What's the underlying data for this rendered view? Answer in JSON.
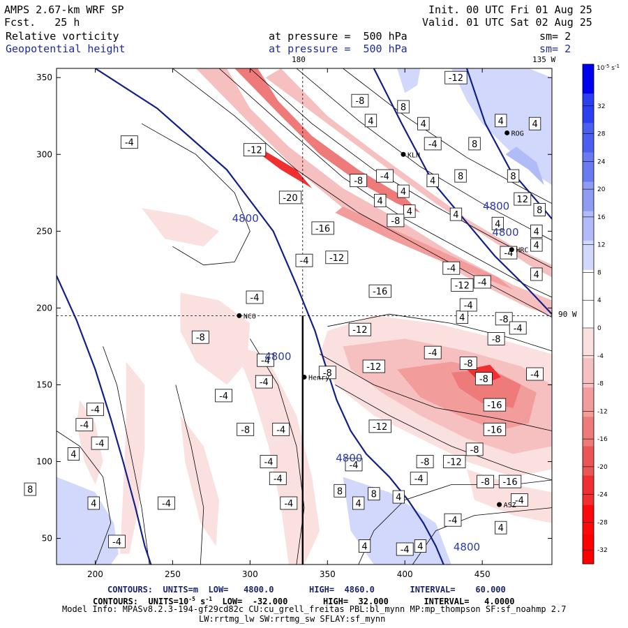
{
  "header": {
    "model": "AMPS 2.67-km WRF SP",
    "fcst": "Fcst.   25 h",
    "init": "Init. 00 UTC Fri 01 Aug 25",
    "valid": "Valid. 01 UTC Sat 02 Aug 25",
    "field1_name": "Relative vorticity",
    "field1_level": "at pressure =  500 hPa",
    "field1_sm": "sm= 2",
    "field2_name": "Geopotential height",
    "field2_level": "at pressure =  500 hPa",
    "field2_sm": "sm= 2",
    "lon_top": "180",
    "lon_right_top": "135 W",
    "lon_right_mid": "90 W"
  },
  "footer": {
    "contours_height": "CONTOURS:  UNITS=m  LOW=   4800.0       HIGH=  4860.0       INTERVAL=    60.000",
    "contours_vort_pre": "CONTOURS:  UNITS=10",
    "contours_vort_exp": "-5",
    "contours_vort_post": " s",
    "contours_vort_exp2": "-1",
    "contours_vort_rest": "  LOW=  -32.000       HIGH=  32.000       INTERVAL=   4.0000",
    "model_info": "Model Info: MPASv8.2.3-194-gf29cd82c CU:cu_grell_freitas PBL:bl_mynn MP:mp_thompson SF:sf_noahmp 2.7",
    "model_info2": "LW:rrtmg_lw SW:rrtmg_sw SFLAY:sf_mynn"
  },
  "colorbar": {
    "title": "10",
    "title_exp": "-5",
    "title_unit": " s",
    "title_unit_exp": "-1",
    "labels": [
      "32",
      "28",
      "24",
      "20",
      "16",
      "12",
      "8",
      "4",
      "0",
      "-4",
      "-8",
      "-12",
      "-16",
      "-20",
      "-24",
      "-28",
      "-32"
    ],
    "positive_colors": [
      "#0000ee",
      "#2b3ff0",
      "#4a5ef0",
      "#6a7bf2",
      "#8f9cf4",
      "#b1bbf7",
      "#d2d8fb",
      "#ffffff"
    ],
    "negative_colors": [
      "#ffffff",
      "#fbe0e0",
      "#f7c0c0",
      "#f29c9c",
      "#ee7a7a",
      "#ea5656",
      "#f03030",
      "#fa0a0a",
      "#ff0000"
    ]
  },
  "stations": [
    {
      "code": "NCO",
      "x": 293,
      "y": 195
    },
    {
      "code": "Henry",
      "x": 335,
      "y": 155
    },
    {
      "code": "KLN",
      "x": 399,
      "y": 300
    },
    {
      "code": "ROG",
      "x": 466,
      "y": 314
    },
    {
      "code": "HRC",
      "x": 469,
      "y": 238
    },
    {
      "code": "ASZ",
      "x": 461,
      "y": 72
    }
  ],
  "chart_data": {
    "type": "heatmap",
    "title": "Relative vorticity / Geopotential height at 500 hPa",
    "xlim": [
      175,
      495
    ],
    "ylim": [
      33,
      356
    ],
    "x_ticks": [
      200,
      250,
      300,
      350,
      400,
      450
    ],
    "y_ticks": [
      50,
      100,
      150,
      200,
      250,
      300,
      350
    ],
    "crosshair": {
      "x": 334,
      "y": 195
    },
    "height_contours": [
      {
        "label": "4800",
        "points": [
          [
            175,
            221
          ],
          [
            188,
            192
          ],
          [
            200,
            160
          ],
          [
            210,
            128
          ],
          [
            218,
            100
          ],
          [
            226,
            70
          ],
          [
            232,
            45
          ],
          [
            236,
            33
          ]
        ]
      },
      {
        "label": "4800",
        "points": [
          [
            200,
            356
          ],
          [
            240,
            330
          ],
          [
            285,
            290
          ],
          [
            315,
            250
          ],
          [
            330,
            215
          ],
          [
            342,
            185
          ],
          [
            348,
            165
          ],
          [
            356,
            140
          ],
          [
            365,
            120
          ],
          [
            375,
            105
          ],
          [
            390,
            90
          ],
          [
            402,
            75
          ],
          [
            412,
            60
          ],
          [
            420,
            45
          ],
          [
            425,
            33
          ]
        ]
      },
      {
        "label": "4800",
        "points": [
          [
            380,
            356
          ],
          [
            398,
            320
          ],
          [
            418,
            282
          ],
          [
            438,
            258
          ],
          [
            458,
            234
          ],
          [
            480,
            212
          ],
          [
            495,
            196
          ]
        ]
      },
      {
        "label": "4800",
        "points": [
          [
            440,
            356
          ],
          [
            452,
            320
          ],
          [
            468,
            290
          ],
          [
            485,
            270
          ],
          [
            495,
            258
          ]
        ]
      }
    ],
    "vorticity_labels": [
      {
        "v": "-8",
        "x": 371,
        "y": 335
      },
      {
        "v": "4",
        "x": 378,
        "y": 322
      },
      {
        "v": "8",
        "x": 399,
        "y": 331
      },
      {
        "v": "4",
        "x": 412,
        "y": 320
      },
      {
        "v": "-12",
        "x": 433,
        "y": 350
      },
      {
        "v": "-4",
        "x": 418,
        "y": 307
      },
      {
        "v": "8",
        "x": 445,
        "y": 307
      },
      {
        "v": "4",
        "x": 462,
        "y": 322
      },
      {
        "v": "4",
        "x": 484,
        "y": 320
      },
      {
        "v": "-4",
        "x": 222,
        "y": 308
      },
      {
        "v": "-12",
        "x": 303,
        "y": 303
      },
      {
        "v": "-8",
        "x": 370,
        "y": 283
      },
      {
        "v": "-4",
        "x": 387,
        "y": 286
      },
      {
        "v": "4",
        "x": 399,
        "y": 276
      },
      {
        "v": "4",
        "x": 418,
        "y": 283
      },
      {
        "v": "8",
        "x": 436,
        "y": 286
      },
      {
        "v": "8",
        "x": 470,
        "y": 286
      },
      {
        "v": "12",
        "x": 476,
        "y": 271
      },
      {
        "v": "8",
        "x": 487,
        "y": 264
      },
      {
        "v": "-20",
        "x": 326,
        "y": 272
      },
      {
        "v": "4",
        "x": 384,
        "y": 270
      },
      {
        "v": "4",
        "x": 403,
        "y": 263
      },
      {
        "v": "-8",
        "x": 394,
        "y": 257
      },
      {
        "v": "4",
        "x": 433,
        "y": 261
      },
      {
        "v": "4",
        "x": 460,
        "y": 255
      },
      {
        "v": "4",
        "x": 485,
        "y": 250
      },
      {
        "v": "4",
        "x": 485,
        "y": 241
      },
      {
        "v": "-16",
        "x": 347,
        "y": 252
      },
      {
        "v": "-4",
        "x": 335,
        "y": 231
      },
      {
        "v": "-12",
        "x": 356,
        "y": 233
      },
      {
        "v": "-4",
        "x": 467,
        "y": 236
      },
      {
        "v": "-4",
        "x": 430,
        "y": 226
      },
      {
        "v": "-12",
        "x": 437,
        "y": 215
      },
      {
        "v": "-4",
        "x": 450,
        "y": 217
      },
      {
        "v": "4",
        "x": 485,
        "y": 222
      },
      {
        "v": "-16",
        "x": 384,
        "y": 211
      },
      {
        "v": "4",
        "x": 437,
        "y": 194
      },
      {
        "v": "-8",
        "x": 464,
        "y": 193
      },
      {
        "v": "-4",
        "x": 303,
        "y": 207
      },
      {
        "v": "-4",
        "x": 441,
        "y": 202
      },
      {
        "v": "-8",
        "x": 459,
        "y": 180
      },
      {
        "v": "-4",
        "x": 473,
        "y": 187
      },
      {
        "v": "-12",
        "x": 371,
        "y": 186
      },
      {
        "v": "-4",
        "x": 418,
        "y": 171
      },
      {
        "v": "-8",
        "x": 441,
        "y": 164
      },
      {
        "v": "-8",
        "x": 451,
        "y": 154
      },
      {
        "v": "-4",
        "x": 484,
        "y": 157
      },
      {
        "v": "-8",
        "x": 268,
        "y": 181
      },
      {
        "v": "-4",
        "x": 310,
        "y": 166
      },
      {
        "v": "-12",
        "x": 380,
        "y": 162
      },
      {
        "v": "-8",
        "x": 350,
        "y": 158
      },
      {
        "v": "-4",
        "x": 309,
        "y": 152
      },
      {
        "v": "-4",
        "x": 283,
        "y": 143
      },
      {
        "v": "-16",
        "x": 458,
        "y": 137
      },
      {
        "v": "-4",
        "x": 200,
        "y": 134
      },
      {
        "v": "-4",
        "x": 193,
        "y": 124
      },
      {
        "v": "-8",
        "x": 297,
        "y": 121
      },
      {
        "v": "-4",
        "x": 320,
        "y": 121
      },
      {
        "v": "-12",
        "x": 384,
        "y": 123
      },
      {
        "v": "-16",
        "x": 458,
        "y": 121
      },
      {
        "v": "-4",
        "x": 203,
        "y": 112
      },
      {
        "v": "4",
        "x": 186,
        "y": 105
      },
      {
        "v": "-8",
        "x": 445,
        "y": 108
      },
      {
        "v": "-4",
        "x": 312,
        "y": 100
      },
      {
        "v": "-8",
        "x": 413,
        "y": 100
      },
      {
        "v": "-12",
        "x": 432,
        "y": 100
      },
      {
        "v": "-4",
        "x": 367,
        "y": 98
      },
      {
        "v": "-4",
        "x": 318,
        "y": 89
      },
      {
        "v": "-4",
        "x": 409,
        "y": 89
      },
      {
        "v": "-8",
        "x": 452,
        "y": 87
      },
      {
        "v": "-16",
        "x": 468,
        "y": 87
      },
      {
        "v": "8",
        "x": 158,
        "y": 82
      },
      {
        "v": "8",
        "x": 358,
        "y": 81
      },
      {
        "v": "8",
        "x": 380,
        "y": 79
      },
      {
        "v": "4",
        "x": 370,
        "y": 73
      },
      {
        "v": "4",
        "x": 396,
        "y": 77
      },
      {
        "v": "4",
        "x": 199,
        "y": 73
      },
      {
        "v": "-4",
        "x": 246,
        "y": 73
      },
      {
        "v": "-4",
        "x": 325,
        "y": 73
      },
      {
        "v": "-4",
        "x": 474,
        "y": 75
      },
      {
        "v": "-4",
        "x": 431,
        "y": 62
      },
      {
        "v": "4",
        "x": 462,
        "y": 57
      },
      {
        "v": "-4",
        "x": 214,
        "y": 48
      },
      {
        "v": "4",
        "x": 374,
        "y": 45
      },
      {
        "v": "4",
        "x": 410,
        "y": 45
      },
      {
        "v": "-4",
        "x": 400,
        "y": 43
      }
    ]
  }
}
